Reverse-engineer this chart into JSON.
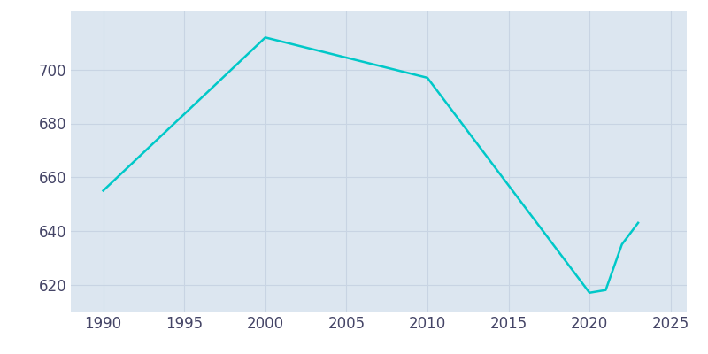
{
  "years": [
    1990,
    2000,
    2010,
    2020,
    2021,
    2022,
    2023
  ],
  "population": [
    655,
    712,
    697,
    617,
    618,
    635,
    643
  ],
  "line_color": "#00C8C8",
  "plot_background_color": "#dce6f0",
  "fig_background_color": "#ffffff",
  "grid_color": "#c8d4e3",
  "xlim": [
    1988,
    2026
  ],
  "ylim": [
    610,
    722
  ],
  "yticks": [
    620,
    640,
    660,
    680,
    700
  ],
  "xticks": [
    1990,
    1995,
    2000,
    2005,
    2010,
    2015,
    2020,
    2025
  ],
  "linewidth": 1.8,
  "tick_labelsize": 12,
  "tick_color": "#444466"
}
